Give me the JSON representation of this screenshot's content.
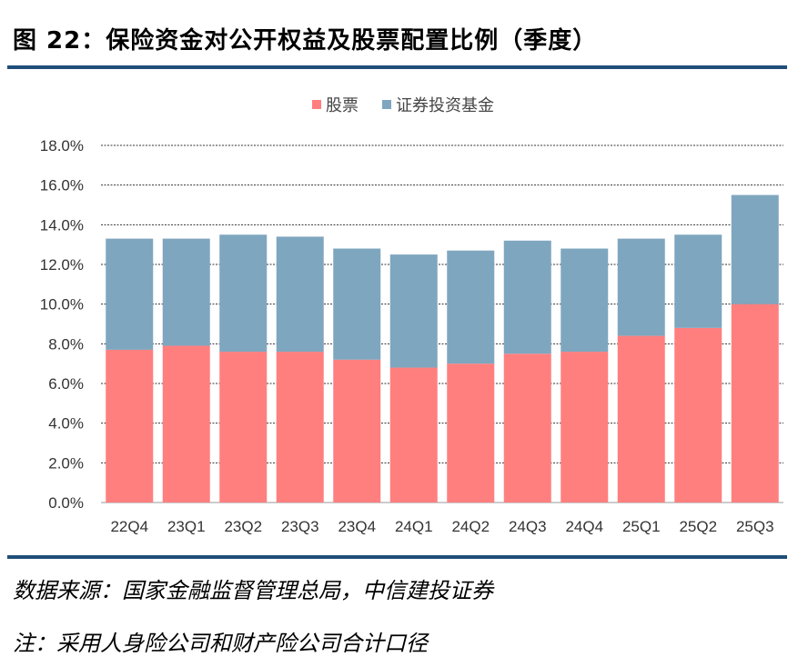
{
  "header": {
    "title": "图 22：保险资金对公开权益及股票配置比例（季度）"
  },
  "footer": {
    "source": "数据来源：国家金融监督管理总局，中信建投证券",
    "note": "注：采用人身险公司和财产险公司合计口径"
  },
  "colors": {
    "stock": "#FF7F7F",
    "fund": "#7FA6BF",
    "rule": "#1F4E79"
  },
  "chart_data": {
    "type": "bar",
    "stacked": true,
    "categories": [
      "22Q4",
      "23Q1",
      "23Q2",
      "23Q3",
      "23Q4",
      "24Q1",
      "24Q2",
      "24Q3",
      "24Q4",
      "25Q1",
      "25Q2",
      "25Q3"
    ],
    "series": [
      {
        "name": "股票",
        "values": [
          7.7,
          7.9,
          7.6,
          7.6,
          7.2,
          6.8,
          7.0,
          7.5,
          7.6,
          8.4,
          8.8,
          10.0
        ]
      },
      {
        "name": "证券投资基金",
        "values": [
          5.6,
          5.4,
          5.9,
          5.8,
          5.6,
          5.7,
          5.7,
          5.7,
          5.2,
          4.9,
          4.7,
          5.5
        ]
      }
    ],
    "ylim": [
      0,
      18
    ],
    "yticks": [
      "0.0%",
      "2.0%",
      "4.0%",
      "6.0%",
      "8.0%",
      "10.0%",
      "12.0%",
      "14.0%",
      "16.0%",
      "18.0%"
    ],
    "grid": true,
    "legend": "top"
  }
}
